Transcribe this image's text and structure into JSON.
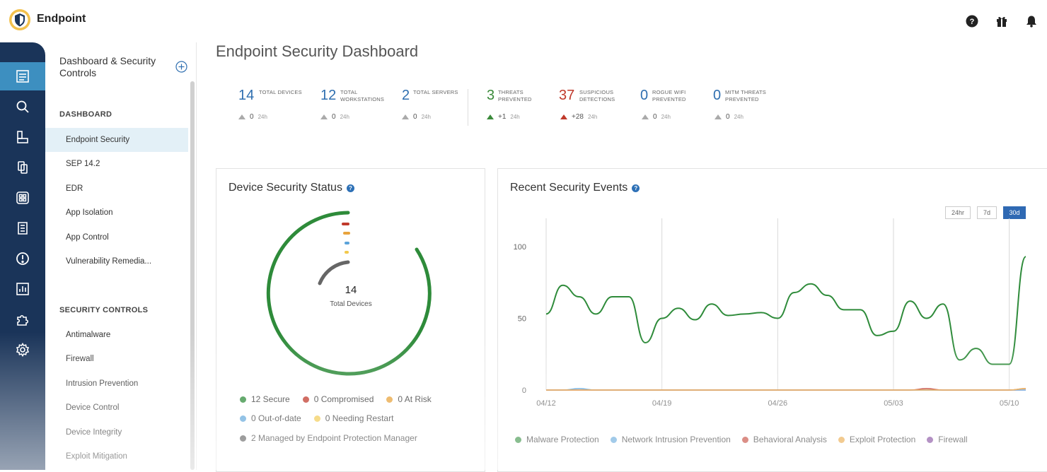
{
  "app": {
    "title": "Endpoint"
  },
  "topbar": {
    "icons": [
      "help-icon",
      "gift-icon",
      "bell-icon"
    ]
  },
  "rail": {
    "items": [
      "dashboard-icon",
      "search-icon",
      "devices-icon",
      "policies-icon",
      "apps-icon",
      "reports-icon",
      "alerts-icon",
      "analytics-icon",
      "integrations-icon",
      "settings-icon"
    ],
    "active_index": 0
  },
  "sidebar": {
    "title": "Dashboard & Security Controls",
    "sections": [
      {
        "heading": "DASHBOARD",
        "items": [
          "Endpoint Security",
          "SEP 14.2",
          "EDR",
          "App Isolation",
          "App Control",
          "Vulnerability Remedia..."
        ]
      },
      {
        "heading": "SECURITY CONTROLS",
        "items": [
          "Antimalware",
          "Firewall",
          "Intrusion Prevention",
          "Device Control",
          "Device Integrity",
          "Exploit Mitigation"
        ]
      }
    ],
    "active_item": "Endpoint Security"
  },
  "main": {
    "title": "Endpoint Security Dashboard",
    "stats": [
      {
        "value": "14",
        "label": "TOTAL DEVICES",
        "delta": "0",
        "unit": "24h",
        "color": "#2f6fb0",
        "trend": "flat"
      },
      {
        "value": "12",
        "label": "TOTAL WORKSTATIONS",
        "delta": "0",
        "unit": "24h",
        "color": "#2f6fb0",
        "trend": "flat"
      },
      {
        "value": "2",
        "label": "TOTAL SERVERS",
        "delta": "0",
        "unit": "24h",
        "color": "#2f6fb0",
        "trend": "flat"
      },
      {
        "value": "3",
        "label": "THREATS PREVENTED",
        "delta": "+1",
        "unit": "24h",
        "color": "#3a8a3a",
        "trend": "up-green"
      },
      {
        "value": "37",
        "label": "SUSPICIOUS DETECTIONS",
        "delta": "+28",
        "unit": "24h",
        "color": "#c0392b",
        "trend": "up-red"
      },
      {
        "value": "0",
        "label": "ROGUE WIFI PREVENTED",
        "delta": "0",
        "unit": "24h",
        "color": "#2f6fb0",
        "trend": "flat"
      },
      {
        "value": "0",
        "label": "MITM THREATS PREVENTED",
        "delta": "0",
        "unit": "24h",
        "color": "#2f6fb0",
        "trend": "flat"
      }
    ]
  },
  "device_status": {
    "title": "Device Security Status",
    "center_value": "14",
    "center_label": "Total Devices",
    "legend": [
      {
        "label": "12 Secure",
        "color": "#2e8b3a"
      },
      {
        "label": "0 Compromised",
        "color": "#c0392b"
      },
      {
        "label": "0 At Risk",
        "color": "#e8a33c"
      },
      {
        "label": "0 Out-of-date",
        "color": "#5ba3d9"
      },
      {
        "label": "0 Needing Restart",
        "color": "#f2c94c"
      },
      {
        "label": "2 Managed by Endpoint Protection Manager",
        "color": "#555555"
      }
    ]
  },
  "events": {
    "title": "Recent Security Events",
    "ranges": [
      "24hr",
      "7d",
      "30d"
    ],
    "active_range": "30d",
    "legend": [
      {
        "label": "Malware Protection",
        "color": "#2e8b3a"
      },
      {
        "label": "Network Intrusion Prevention",
        "color": "#5ba3d9"
      },
      {
        "label": "Behavioral Analysis",
        "color": "#c0392b"
      },
      {
        "label": "Exploit Protection",
        "color": "#e8a33c"
      },
      {
        "label": "Firewall",
        "color": "#7b3f98"
      }
    ]
  },
  "chart_data": {
    "type": "line",
    "title": "Recent Security Events",
    "x_ticks": [
      "04/12",
      "04/19",
      "04/26",
      "05/03",
      "05/10"
    ],
    "y_ticks": [
      0,
      50,
      100
    ],
    "ylim": [
      0,
      100
    ],
    "grid": "vertical",
    "legend_position": "bottom",
    "x": [
      "04/12",
      "04/13",
      "04/14",
      "04/15",
      "04/16",
      "04/17",
      "04/18",
      "04/19",
      "04/20",
      "04/21",
      "04/22",
      "04/23",
      "04/24",
      "04/25",
      "04/26",
      "04/27",
      "04/28",
      "04/29",
      "04/30",
      "05/01",
      "05/02",
      "05/03",
      "05/04",
      "05/05",
      "05/06",
      "05/07",
      "05/08",
      "05/09",
      "05/10",
      "05/11"
    ],
    "series": [
      {
        "name": "Malware Protection",
        "values": [
          53,
          73,
          65,
          53,
          65,
          65,
          33,
          50,
          57,
          49,
          60,
          52,
          53,
          54,
          50,
          68,
          74,
          66,
          56,
          56,
          38,
          41,
          62,
          50,
          60,
          21,
          29,
          18,
          18,
          93
        ]
      },
      {
        "name": "Network Intrusion Prevention",
        "values": [
          0,
          0,
          1,
          0,
          0,
          0,
          0,
          0,
          0,
          0,
          0,
          0,
          0,
          0,
          0,
          0,
          0,
          0,
          0,
          0,
          0,
          0,
          0,
          0,
          0,
          0,
          0,
          0,
          0,
          0
        ]
      },
      {
        "name": "Behavioral Analysis",
        "values": [
          0,
          0,
          0,
          0,
          0,
          0,
          0,
          0,
          0,
          0,
          0,
          0,
          0,
          0,
          0,
          0,
          0,
          0,
          0,
          0,
          0,
          0,
          0,
          1,
          0,
          0,
          0,
          0,
          0,
          1
        ]
      },
      {
        "name": "Exploit Protection",
        "values": [
          0,
          0,
          0,
          0,
          0,
          0,
          0,
          0,
          0,
          0,
          0,
          0,
          0,
          0,
          0,
          0,
          0,
          0,
          0,
          0,
          0,
          0,
          0,
          0,
          0,
          0,
          0,
          0,
          0,
          1
        ]
      },
      {
        "name": "Firewall",
        "values": [
          0,
          0,
          0,
          0,
          0,
          0,
          0,
          0,
          0,
          0,
          0,
          0,
          0,
          0,
          0,
          0,
          0,
          0,
          0,
          0,
          0,
          0,
          0,
          0,
          0,
          0,
          0,
          0,
          0,
          0
        ]
      }
    ]
  }
}
